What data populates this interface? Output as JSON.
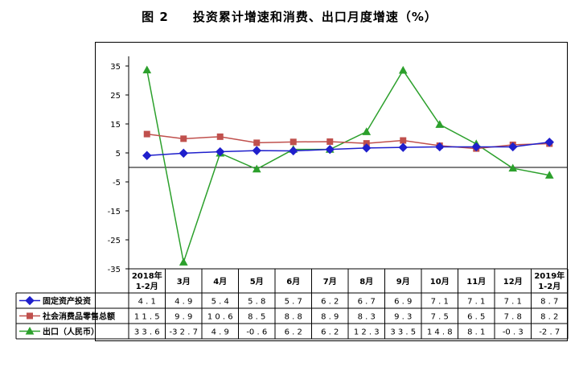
{
  "title": {
    "fig_label": "图 2",
    "text": "投资累计增速和消费、出口月度增速（%）"
  },
  "chart_data": {
    "type": "line",
    "categories": [
      "2018年\n1-2月",
      "3月",
      "4月",
      "5月",
      "6月",
      "7月",
      "8月",
      "9月",
      "10月",
      "11月",
      "12月",
      "2019年\n1-2月"
    ],
    "ylim": [
      -35,
      35
    ],
    "yticks": [
      35,
      25,
      15,
      5,
      -5,
      -15,
      -25,
      -35
    ],
    "grid": false,
    "legend": "data table",
    "series": [
      {
        "name": "固定资产投资",
        "color": "#1f1fcc",
        "marker": "diamond",
        "values": [
          4.1,
          4.9,
          5.4,
          5.8,
          5.7,
          6.2,
          6.7,
          6.9,
          7.1,
          7.1,
          7.1,
          8.7
        ]
      },
      {
        "name": "社会消费品零售总额",
        "color": "#c0504d",
        "marker": "square",
        "values": [
          11.5,
          9.9,
          10.6,
          8.5,
          8.8,
          8.9,
          8.3,
          9.3,
          7.5,
          6.5,
          7.8,
          8.2
        ]
      },
      {
        "name": "出口（人民币）",
        "color": "#2ca02c",
        "marker": "triangle",
        "values": [
          33.6,
          -32.7,
          4.9,
          -0.6,
          6.2,
          6.2,
          12.3,
          33.5,
          14.8,
          8.1,
          -0.3,
          -2.7
        ]
      }
    ]
  }
}
